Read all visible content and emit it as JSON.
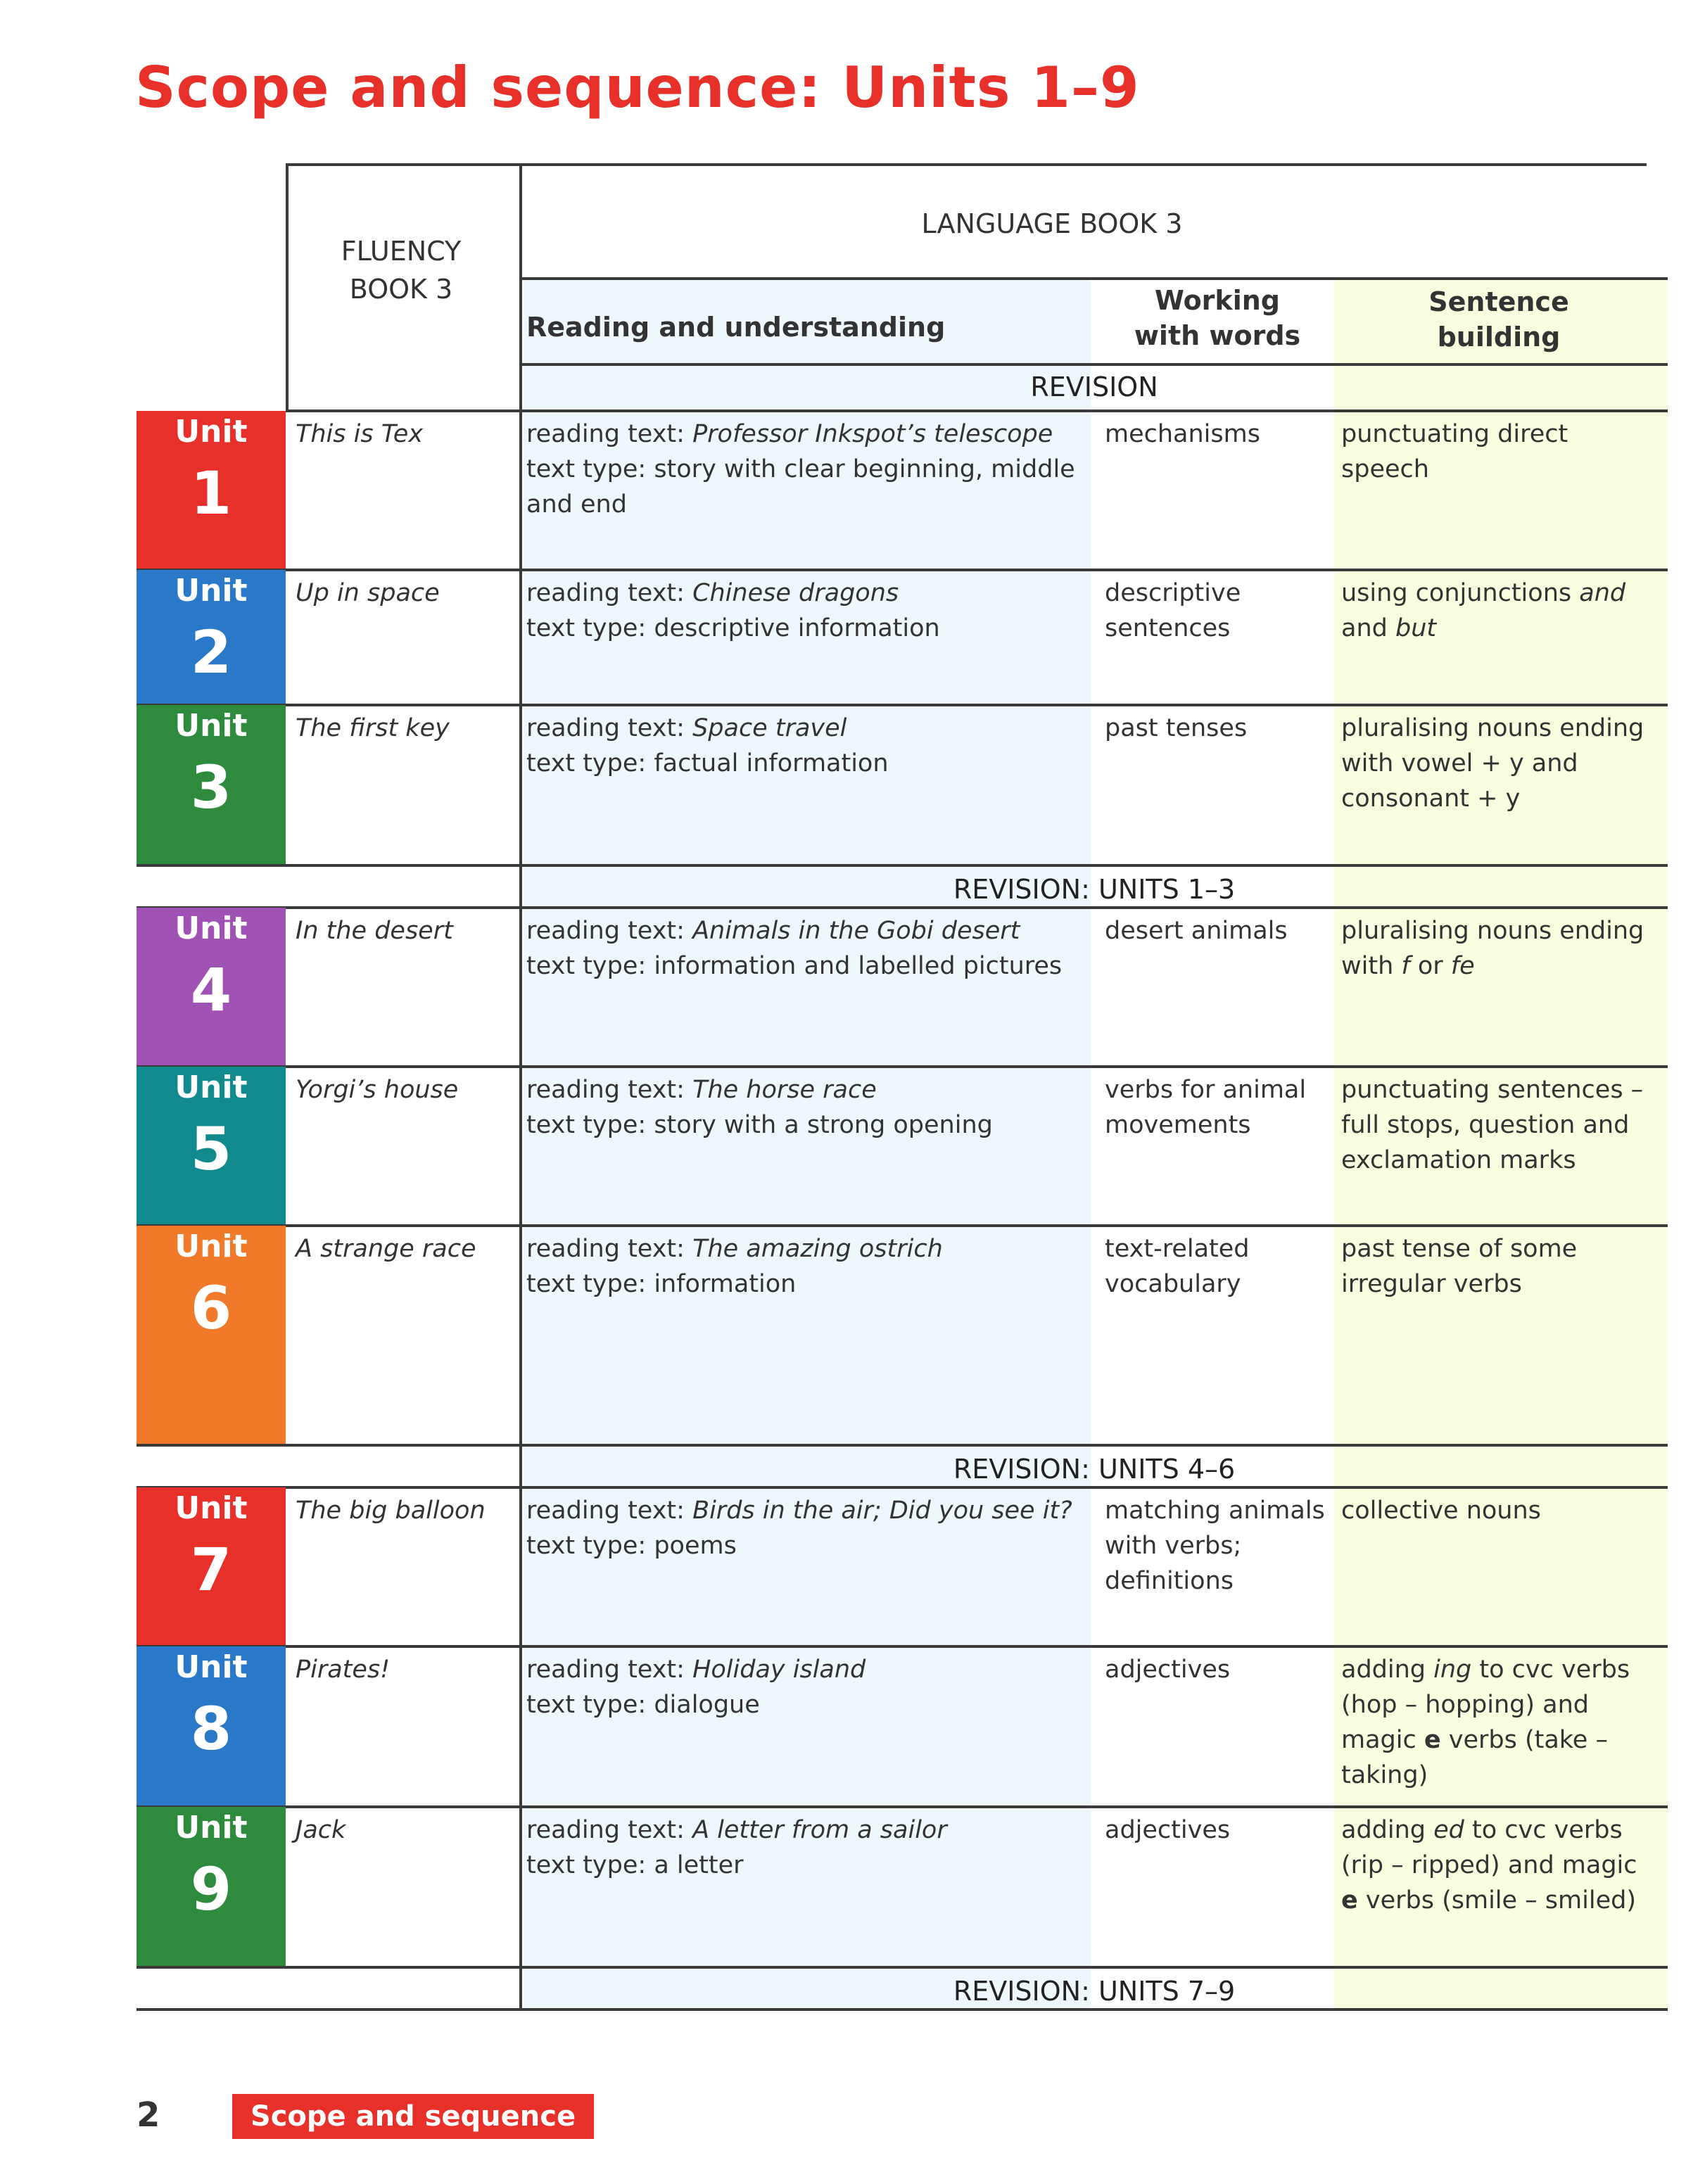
{
  "title": "Scope and sequence: Units 1–9",
  "header": {
    "fluency": "FLUENCY BOOK 3",
    "language": "LANGUAGE BOOK 3",
    "reading": "Reading and understanding",
    "working": "Working with words",
    "sentence": "Sentence building"
  },
  "unit_label": "Unit",
  "revisions": [
    "REVISION",
    "REVISION: UNITS 1–3",
    "REVISION: UNITS 4–6",
    "REVISION: UNITS 7–9"
  ],
  "colors": {
    "title": "#e8302a",
    "reading_bg": "#eef8fc",
    "sentence_bg": "#fafde0"
  },
  "units": [
    {
      "num": "1",
      "color": "#e8302a",
      "fluency": "This is Tex",
      "reading_label": "reading text:",
      "reading_title": "Professor Inkspot’s telescope",
      "type_label": "text type:",
      "type": "story with clear beginning, middle and end",
      "working": "mechanisms",
      "sentence": [
        {
          "t": "punctuating direct speech"
        }
      ]
    },
    {
      "num": "2",
      "color": "#2a78c8",
      "fluency": "Up in space",
      "reading_label": "reading text:",
      "reading_title": "Chinese dragons",
      "type_label": "text type:",
      "type": "descriptive information",
      "working": "descriptive sentences",
      "sentence": [
        {
          "t": "using conjunctions "
        },
        {
          "t": "and",
          "i": true
        },
        {
          "t": " and "
        },
        {
          "t": "but",
          "i": true
        }
      ]
    },
    {
      "num": "3",
      "color": "#2e8a3c",
      "fluency": "The first key",
      "reading_label": "reading text:",
      "reading_title": "Space travel",
      "type_label": "text type:",
      "type": "factual information",
      "working": "past tenses",
      "sentence": [
        {
          "t": "pluralising nouns ending with vowel + y and consonant + y"
        }
      ]
    },
    {
      "num": "4",
      "color": "#a052b4",
      "fluency": "In the desert",
      "reading_label": "reading text:",
      "reading_title": "Animals in the Gobi desert",
      "type_label": "text type:",
      "type": "information and labelled pictures",
      "working": "desert animals",
      "sentence": [
        {
          "t": "pluralising nouns ending with "
        },
        {
          "t": "f",
          "i": true
        },
        {
          "t": " or "
        },
        {
          "t": "fe",
          "i": true
        }
      ]
    },
    {
      "num": "5",
      "color": "#108a8c",
      "fluency": "Yorgi’s house",
      "reading_label": "reading text:",
      "reading_title": "The horse race",
      "type_label": "text type:",
      "type": "story with a strong opening",
      "working": "verbs for animal movements",
      "sentence": [
        {
          "t": "punctuating sentences – full stops, question and exclamation marks"
        }
      ]
    },
    {
      "num": "6",
      "color": "#f07a2a",
      "fluency": "A strange race",
      "reading_label": "reading text:",
      "reading_title": "The amazing ostrich",
      "type_label": "text type:",
      "type": "information",
      "working": "text-related vocabulary",
      "sentence": [
        {
          "t": "past tense of some irregular verbs"
        }
      ]
    },
    {
      "num": "7",
      "color": "#e8302a",
      "fluency": "The big balloon",
      "reading_label": "reading text:",
      "reading_title": "Birds in the air; Did you see it?",
      "type_label": "text type:",
      "type": "poems",
      "working": "matching animals with verbs; definitions",
      "sentence": [
        {
          "t": "collective nouns"
        }
      ]
    },
    {
      "num": "8",
      "color": "#2a78c8",
      "fluency": "Pirates!",
      "reading_label": "reading text:",
      "reading_title": "Holiday island",
      "type_label": "text type:",
      "type": "dialogue",
      "working": "adjectives",
      "sentence": [
        {
          "t": "adding "
        },
        {
          "t": "ing",
          "i": true
        },
        {
          "t": " to cvc verbs (hop – hopping) and magic "
        },
        {
          "t": "e",
          "b": true
        },
        {
          "t": " verbs (take – taking)"
        }
      ]
    },
    {
      "num": "9",
      "color": "#2e8a3c",
      "fluency": "Jack",
      "reading_label": "reading text:",
      "reading_title": "A letter from a sailor",
      "type_label": "text type:",
      "type": "a letter",
      "working": "adjectives",
      "sentence": [
        {
          "t": "adding "
        },
        {
          "t": "ed",
          "i": true
        },
        {
          "t": " to cvc verbs (rip – ripped) and magic "
        },
        {
          "t": "e",
          "b": true
        },
        {
          "t": " verbs (smile – smiled)"
        }
      ]
    }
  ],
  "footer": {
    "page_number": "2",
    "section": "Scope and sequence"
  }
}
